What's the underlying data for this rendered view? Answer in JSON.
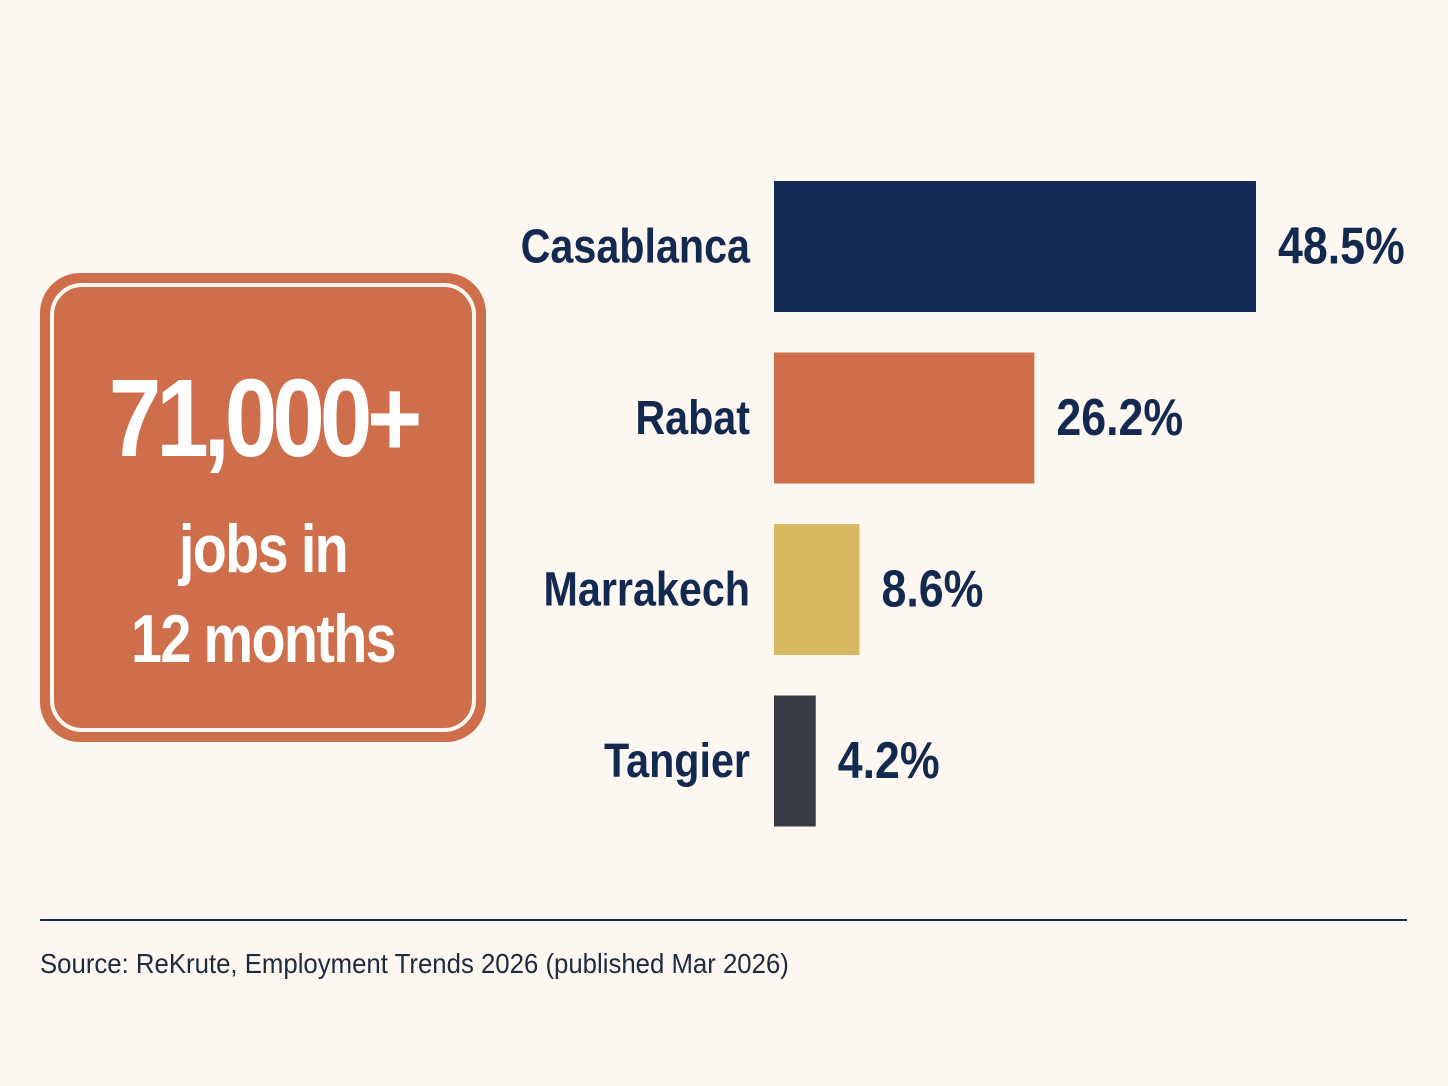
{
  "stat": {
    "headline": "71,000+",
    "line1": "jobs in",
    "line2": "12 months"
  },
  "chart_data": {
    "type": "bar",
    "orientation": "horizontal",
    "categories": [
      "Casablanca",
      "Rabat",
      "Marrakech",
      "Tangier"
    ],
    "values": [
      48.5,
      26.2,
      8.6,
      4.2
    ],
    "value_labels": [
      "48.5%",
      "26.2%",
      "8.6%",
      "4.2%"
    ],
    "colors": [
      "#132b54",
      "#cf6e4b",
      "#d7b95f",
      "#393c45"
    ],
    "unit": "%",
    "xlim": [
      0,
      48.5
    ],
    "grid": false,
    "legend": "none"
  },
  "footer": {
    "source": "Source: ReKrute, Employment Trends 2026 (published Mar 2026)"
  }
}
